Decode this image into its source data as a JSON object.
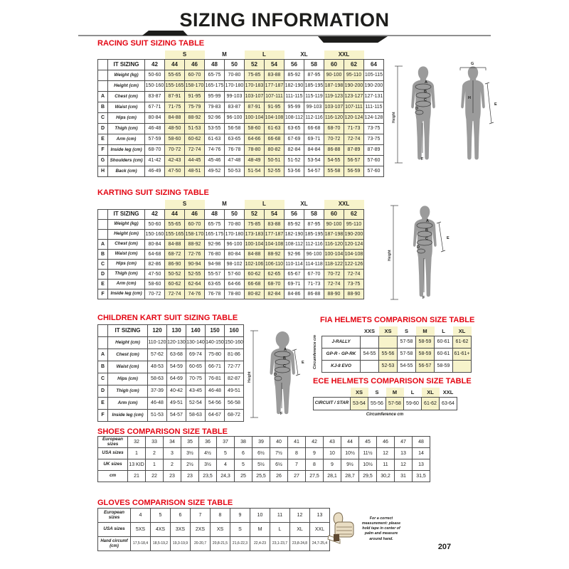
{
  "header": {
    "title": "SIZING INFORMATION"
  },
  "footer": {
    "page_number": "207"
  },
  "colors": {
    "accent_red": "#e30613",
    "highlight_yellow": "#f7f3cb"
  },
  "racing": {
    "title": "RACING SUIT SIZING TABLE",
    "corner_label": "IT SIZING",
    "letter_col": true,
    "lead_cols": 3,
    "trailing_cols": 1,
    "header_borderless": false,
    "groups": [
      {
        "label": "S",
        "highlight": true
      },
      {
        "label": "M",
        "highlight": false
      },
      {
        "label": "L",
        "highlight": true
      },
      {
        "label": "XL",
        "highlight": false
      },
      {
        "label": "XXL",
        "highlight": true
      }
    ],
    "columns": [
      "42",
      "44",
      "46",
      "48",
      "50",
      "52",
      "54",
      "56",
      "58",
      "60",
      "62",
      "64"
    ],
    "highlight_cols": [
      1,
      2,
      5,
      6,
      9,
      10
    ],
    "rows": [
      {
        "letter": "",
        "label": "Weight (kg)",
        "values": [
          "50-60",
          "55-65",
          "60-70",
          "65-75",
          "70-80",
          "75-85",
          "83-88",
          "85-92",
          "87-95",
          "90-100",
          "95-110",
          "105-115"
        ]
      },
      {
        "letter": "",
        "label": "Height (cm)",
        "values": [
          "150-160",
          "155-165",
          "158-170",
          "165-175",
          "170-180",
          "170-183",
          "177-187",
          "182-190",
          "185-195",
          "187-198",
          "190-200",
          "190-200"
        ]
      },
      {
        "letter": "A",
        "label": "Chest (cm)",
        "values": [
          "83-87",
          "87-91",
          "91-95",
          "95-99",
          "99-103",
          "103-107",
          "107-111",
          "111-115",
          "115-119",
          "119-123",
          "123-127",
          "127-131"
        ]
      },
      {
        "letter": "B",
        "label": "Waist (cm)",
        "values": [
          "67-71",
          "71-75",
          "75-79",
          "79-83",
          "83-87",
          "87-91",
          "91-95",
          "95-99",
          "99-103",
          "103-107",
          "107-111",
          "111-115"
        ]
      },
      {
        "letter": "C",
        "label": "Hips (cm)",
        "values": [
          "80-84",
          "84-88",
          "88-92",
          "92-96",
          "96-100",
          "100-104",
          "104-108",
          "108-112",
          "112-116",
          "116-120",
          "120-124",
          "124-128"
        ]
      },
      {
        "letter": "D",
        "label": "Thigh (cm)",
        "values": [
          "46-48",
          "48-50",
          "51-53",
          "53-55",
          "56-58",
          "58-60",
          "61-63",
          "63-65",
          "66-68",
          "68-70",
          "71-73",
          "73-75"
        ]
      },
      {
        "letter": "E",
        "label": "Arm (cm)",
        "values": [
          "57-59",
          "58-60",
          "60-62",
          "61-63",
          "63-65",
          "64-66",
          "66-68",
          "67-69",
          "69-71",
          "70-72",
          "72-74",
          "73-75"
        ]
      },
      {
        "letter": "F",
        "label": "Inside leg (cm)",
        "values": [
          "68-70",
          "70-72",
          "72-74",
          "74-76",
          "76-78",
          "78-80",
          "80-82",
          "82-84",
          "84-84",
          "86-88",
          "87-89",
          "87-89"
        ]
      },
      {
        "letter": "G",
        "label": "Shoulders (cm)",
        "values": [
          "41-42",
          "42-43",
          "44-45",
          "45-46",
          "47-48",
          "48-49",
          "50-51",
          "51-52",
          "53-54",
          "54-55",
          "56-57",
          "57-60"
        ]
      },
      {
        "letter": "H",
        "label": "Back (cm)",
        "values": [
          "46-49",
          "47-50",
          "48-51",
          "49-52",
          "50-53",
          "51-54",
          "52-55",
          "53-56",
          "54-57",
          "55-58",
          "56-59",
          "57-60"
        ]
      }
    ],
    "diagram": {
      "height_label": "Height",
      "front_labels": [
        "A",
        "B",
        "C",
        "D",
        "F"
      ],
      "back_labels": [
        "G",
        "H",
        "E"
      ]
    }
  },
  "karting": {
    "title": "KARTING SUIT SIZING TABLE",
    "corner_label": "IT SIZING",
    "letter_col": true,
    "lead_cols": 3,
    "trailing_cols": 0,
    "header_borderless": false,
    "groups": [
      {
        "label": "S",
        "highlight": true
      },
      {
        "label": "M",
        "highlight": false
      },
      {
        "label": "L",
        "highlight": true
      },
      {
        "label": "XL",
        "highlight": false
      },
      {
        "label": "XXL",
        "highlight": true
      }
    ],
    "columns": [
      "42",
      "44",
      "46",
      "48",
      "50",
      "52",
      "54",
      "56",
      "58",
      "60",
      "62"
    ],
    "highlight_cols": [
      1,
      2,
      5,
      6,
      9,
      10
    ],
    "rows": [
      {
        "letter": "",
        "label": "Weight (kg)",
        "values": [
          "50-60",
          "55-65",
          "60-70",
          "65-75",
          "70-80",
          "75-85",
          "83-88",
          "85-92",
          "87-95",
          "90-100",
          "95-110"
        ]
      },
      {
        "letter": "",
        "label": "Height (cm)",
        "values": [
          "150-160",
          "155-165",
          "158-170",
          "165-175",
          "170-180",
          "173-183",
          "177-187",
          "182-190",
          "185-195",
          "187-198",
          "190-200"
        ]
      },
      {
        "letter": "A",
        "label": "Chest (cm)",
        "values": [
          "80-84",
          "84-88",
          "88-92",
          "92-96",
          "96-100",
          "100-104",
          "104-108",
          "108-112",
          "112-116",
          "116-120",
          "120-124"
        ]
      },
      {
        "letter": "B",
        "label": "Waist (cm)",
        "values": [
          "64-68",
          "68-72",
          "72-76",
          "76-80",
          "80-84",
          "84-88",
          "88-92",
          "92-96",
          "96-100",
          "100-104",
          "104-108"
        ]
      },
      {
        "letter": "C",
        "label": "Hips (cm)",
        "values": [
          "82-86",
          "86-90",
          "90-94",
          "94-98",
          "98-102",
          "102-106",
          "106-110",
          "110-114",
          "114-118",
          "118-122",
          "122-126"
        ]
      },
      {
        "letter": "D",
        "label": "Thigh (cm)",
        "values": [
          "47-50",
          "50-52",
          "52-55",
          "55-57",
          "57-60",
          "60-62",
          "62-65",
          "65-67",
          "67-70",
          "70-72",
          "72-74"
        ]
      },
      {
        "letter": "E",
        "label": "Arm (cm)",
        "values": [
          "58-60",
          "60-62",
          "62-64",
          "63-65",
          "64-66",
          "66-68",
          "68-70",
          "69-71",
          "71-73",
          "72-74",
          "73-75"
        ]
      },
      {
        "letter": "F",
        "label": "Inside leg (cm)",
        "values": [
          "70-72",
          "72-74",
          "74-76",
          "76-78",
          "78-80",
          "80-82",
          "82-84",
          "84-86",
          "86-88",
          "88-90",
          "88-90"
        ]
      }
    ],
    "diagram": {
      "height_label": "Height",
      "front_labels": [
        "A",
        "B",
        "C",
        "D",
        "E",
        "F"
      ]
    }
  },
  "children": {
    "title": "CHILDREN KART SUIT SIZING TABLE",
    "corner_label": "IT SIZING",
    "letter_col": true,
    "header_borderless": false,
    "columns": [
      "120",
      "130",
      "140",
      "150",
      "160"
    ],
    "highlight_cols": [],
    "rows": [
      {
        "letter": "",
        "label": "Height (cm)",
        "values": [
          "110-120",
          "120-130",
          "130-140",
          "140-150",
          "150-160"
        ]
      },
      {
        "letter": "A",
        "label": "Chest (cm)",
        "values": [
          "57-62",
          "63-68",
          "69-74",
          "75-80",
          "81-86"
        ]
      },
      {
        "letter": "B",
        "label": "Waist (cm)",
        "values": [
          "48-53",
          "54-59",
          "60-65",
          "66-71",
          "72-77"
        ]
      },
      {
        "letter": "C",
        "label": "Hips (cm)",
        "values": [
          "58-63",
          "64-69",
          "70-75",
          "76-81",
          "82-87"
        ]
      },
      {
        "letter": "D",
        "label": "Thigh (cm)",
        "values": [
          "37-39",
          "40-42",
          "43-45",
          "46-48",
          "49-51"
        ]
      },
      {
        "letter": "E",
        "label": "Arm (cm)",
        "values": [
          "46-48",
          "49-51",
          "52-54",
          "54-56",
          "56-58"
        ]
      },
      {
        "letter": "F",
        "label": "Inside leg (cm)",
        "values": [
          "51-53",
          "54-57",
          "58-63",
          "64-67",
          "68-72"
        ]
      }
    ],
    "diagram": {
      "height_label": "Height",
      "front_labels": [
        "A",
        "B",
        "C",
        "D",
        "E",
        "F"
      ]
    }
  },
  "fia": {
    "title": "FIA HELMETS COMPARISON SIZE TABLE",
    "side_label": "Circumference cm",
    "letter_col": false,
    "corner_label": "",
    "header_borderless": true,
    "columns": [
      "XXS",
      "XS",
      "S",
      "M",
      "L",
      "XL"
    ],
    "highlight_cols": [
      1,
      3,
      5
    ],
    "rows": [
      {
        "label": "J-RALLY",
        "values": [
          "",
          "",
          "57-58",
          "58-59",
          "60-61",
          "61-62"
        ]
      },
      {
        "label": "GP-R - GP-RK",
        "values": [
          "54-55",
          "55-56",
          "57-58",
          "58-59",
          "60-61",
          "61-61+"
        ]
      },
      {
        "label": "KJ-8 EVO",
        "values": [
          "",
          "52-53",
          "54-55",
          "56-57",
          "58-59",
          ""
        ]
      }
    ]
  },
  "ece": {
    "title": "ECE HELMETS COMPARISON SIZE TABLE",
    "caption": "Circumference cm",
    "letter_col": false,
    "corner_label": "",
    "header_borderless": true,
    "columns": [
      "XS",
      "S",
      "M",
      "L",
      "XL",
      "XXL"
    ],
    "highlight_cols": [
      0,
      2,
      4
    ],
    "rows": [
      {
        "label": "CIRCUIT / STAR",
        "values": [
          "53-54",
          "55-56",
          "57-58",
          "59-60",
          "61-62",
          "63-64"
        ]
      }
    ]
  },
  "shoes": {
    "title": "SHOES COMPARISON SIZE TABLE",
    "letter_col": false,
    "highlight_cols": [],
    "rows": [
      {
        "label": "European sizes",
        "values": [
          "32",
          "33",
          "34",
          "35",
          "36",
          "37",
          "38",
          "39",
          "40",
          "41",
          "42",
          "43",
          "44",
          "45",
          "46",
          "47",
          "48"
        ]
      },
      {
        "label": "USA sizes",
        "values": [
          "1",
          "2",
          "3",
          "3½",
          "4½",
          "5",
          "6",
          "6½",
          "7½",
          "8",
          "9",
          "10",
          "10½",
          "11½",
          "12",
          "13",
          "14"
        ]
      },
      {
        "label": "UK sizes",
        "values": [
          "13 KID",
          "1",
          "2",
          "2½",
          "3½",
          "4",
          "5",
          "5½",
          "6½",
          "7",
          "8",
          "9",
          "9½",
          "10½",
          "11",
          "12",
          "13"
        ]
      },
      {
        "label": "cm",
        "values": [
          "21",
          "22",
          "23",
          "23",
          "23,5",
          "24,3",
          "25",
          "25,5",
          "26",
          "27",
          "27,5",
          "28,1",
          "28,7",
          "29,5",
          "30,2",
          "31",
          "31,5"
        ]
      }
    ]
  },
  "gloves": {
    "title": "GLOVES COMPARISON SIZE TABLE",
    "letter_col": false,
    "highlight_cols": [],
    "rows": [
      {
        "label": "European sizes",
        "values": [
          "4",
          "5",
          "6",
          "7",
          "8",
          "9",
          "10",
          "11",
          "12",
          "13"
        ]
      },
      {
        "label": "USA sizes",
        "values": [
          "5XS",
          "4XS",
          "3XS",
          "2XS",
          "XS",
          "S",
          "M",
          "L",
          "XL",
          "XXL"
        ]
      },
      {
        "label": "Hand circumf (cm)",
        "values": [
          "17,5-18,4",
          "18,5-19,2",
          "19,3-19,9",
          "20-20,7",
          "20,8-21,5",
          "21,6-22,3",
          "22,4-23",
          "23,1-23,7",
          "23,8-24,8",
          "24,7-25,4"
        ]
      }
    ]
  },
  "note": {
    "text": "For a correct measurement: please hold tape in center of palm and measure around hand."
  }
}
